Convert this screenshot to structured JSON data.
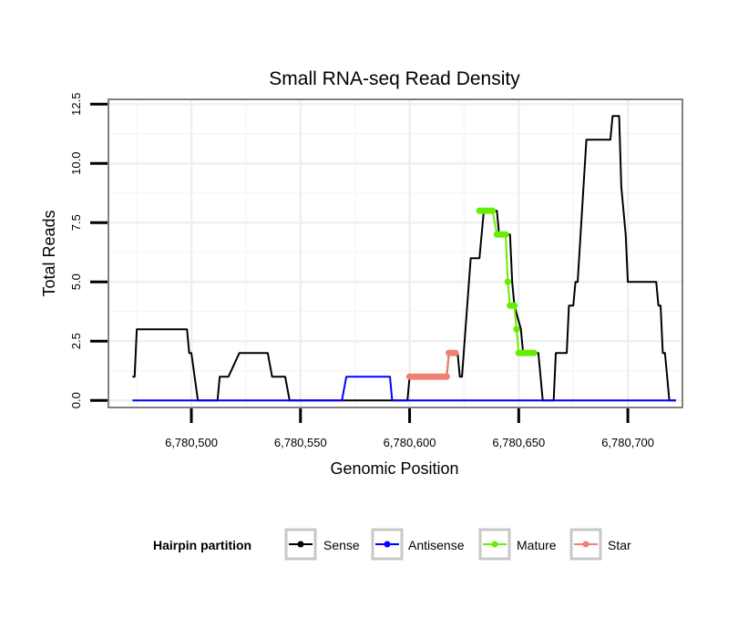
{
  "chart_data": {
    "type": "line",
    "title": "Small RNA-seq Read Density",
    "xlabel": "Genomic Position",
    "ylabel": "Total Reads",
    "xlim": [
      6780462,
      6780725
    ],
    "ylim": [
      -0.3,
      12.7
    ],
    "x_ticks": [
      6780500,
      6780550,
      6780600,
      6780650,
      6780700
    ],
    "x_tick_labels": [
      "6,780,500",
      "6,780,550",
      "6,780,600",
      "6,780,650",
      "6,780,700"
    ],
    "y_ticks": [
      0,
      2.5,
      5,
      7.5,
      10,
      12.5
    ],
    "y_tick_labels": [
      "0.0",
      "2.5",
      "5.0",
      "7.5",
      "10.0",
      "12.5"
    ],
    "grid": true,
    "legend": {
      "title": "Hairpin partition",
      "position": "bottom",
      "entries": [
        {
          "name": "Sense",
          "color": "#000000"
        },
        {
          "name": "Antisense",
          "color": "#0000ff"
        },
        {
          "name": "Mature",
          "color": "#66ee00"
        },
        {
          "name": "Star",
          "color": "#f08070"
        }
      ]
    },
    "series": [
      {
        "name": "Sense",
        "color": "#000000",
        "markers": false,
        "points": [
          [
            6780473,
            1
          ],
          [
            6780474,
            1
          ],
          [
            6780475,
            3
          ],
          [
            6780498,
            3
          ],
          [
            6780499,
            2
          ],
          [
            6780500,
            2
          ],
          [
            6780503,
            0
          ],
          [
            6780512,
            0
          ],
          [
            6780513,
            1
          ],
          [
            6780517,
            1
          ],
          [
            6780522,
            2
          ],
          [
            6780535,
            2
          ],
          [
            6780537,
            1
          ],
          [
            6780543,
            1
          ],
          [
            6780545,
            0
          ],
          [
            6780599,
            0
          ],
          [
            6780600,
            1
          ],
          [
            6780617,
            1
          ],
          [
            6780618,
            2
          ],
          [
            6780622,
            2
          ],
          [
            6780623,
            1
          ],
          [
            6780624,
            1
          ],
          [
            6780628,
            6
          ],
          [
            6780632,
            6
          ],
          [
            6780634,
            8
          ],
          [
            6780640,
            8
          ],
          [
            6780641,
            7
          ],
          [
            6780646,
            7
          ],
          [
            6780647,
            5
          ],
          [
            6780648,
            4
          ],
          [
            6780651,
            3
          ],
          [
            6780652,
            2
          ],
          [
            6780659,
            2
          ],
          [
            6780661,
            0
          ],
          [
            6780666,
            0
          ],
          [
            6780667,
            2
          ],
          [
            6780672,
            2
          ],
          [
            6780673,
            4
          ],
          [
            6780675,
            4
          ],
          [
            6780676,
            5
          ],
          [
            6780677,
            5
          ],
          [
            6780679,
            8
          ],
          [
            6780681,
            11
          ],
          [
            6780692,
            11
          ],
          [
            6780693,
            12
          ],
          [
            6780696,
            12
          ],
          [
            6780697,
            9
          ],
          [
            6780699,
            7
          ],
          [
            6780700,
            5
          ],
          [
            6780713,
            5
          ],
          [
            6780714,
            4
          ],
          [
            6780715,
            4
          ],
          [
            6780716,
            2
          ],
          [
            6780717,
            2
          ],
          [
            6780718,
            1
          ],
          [
            6780719,
            0
          ],
          [
            6780722,
            0
          ]
        ]
      },
      {
        "name": "Antisense",
        "color": "#0000ff",
        "markers": false,
        "points": [
          [
            6780473,
            0
          ],
          [
            6780569,
            0
          ],
          [
            6780571,
            1
          ],
          [
            6780591,
            1
          ],
          [
            6780592,
            0
          ],
          [
            6780722,
            0
          ]
        ]
      },
      {
        "name": "Mature",
        "color": "#66ee00",
        "markers": true,
        "points": [
          [
            6780632,
            8
          ],
          [
            6780633,
            8
          ],
          [
            6780634,
            8
          ],
          [
            6780635,
            8
          ],
          [
            6780636,
            8
          ],
          [
            6780637,
            8
          ],
          [
            6780638,
            8
          ],
          [
            6780640,
            7
          ],
          [
            6780641,
            7
          ],
          [
            6780642,
            7
          ],
          [
            6780643,
            7
          ],
          [
            6780644,
            7
          ],
          [
            6780645,
            5
          ],
          [
            6780646,
            4
          ],
          [
            6780647,
            4
          ],
          [
            6780648,
            4
          ],
          [
            6780649,
            3
          ],
          [
            6780650,
            2
          ],
          [
            6780651,
            2
          ],
          [
            6780652,
            2
          ],
          [
            6780653,
            2
          ],
          [
            6780654,
            2
          ],
          [
            6780655,
            2
          ],
          [
            6780656,
            2
          ],
          [
            6780657,
            2
          ]
        ]
      },
      {
        "name": "Star",
        "color": "#f08070",
        "markers": true,
        "points": [
          [
            6780600,
            1
          ],
          [
            6780601,
            1
          ],
          [
            6780602,
            1
          ],
          [
            6780603,
            1
          ],
          [
            6780604,
            1
          ],
          [
            6780605,
            1
          ],
          [
            6780606,
            1
          ],
          [
            6780607,
            1
          ],
          [
            6780608,
            1
          ],
          [
            6780609,
            1
          ],
          [
            6780610,
            1
          ],
          [
            6780611,
            1
          ],
          [
            6780612,
            1
          ],
          [
            6780613,
            1
          ],
          [
            6780614,
            1
          ],
          [
            6780615,
            1
          ],
          [
            6780616,
            1
          ],
          [
            6780617,
            1
          ],
          [
            6780618,
            2
          ],
          [
            6780619,
            2
          ],
          [
            6780620,
            2
          ],
          [
            6780621,
            2
          ]
        ]
      }
    ]
  }
}
